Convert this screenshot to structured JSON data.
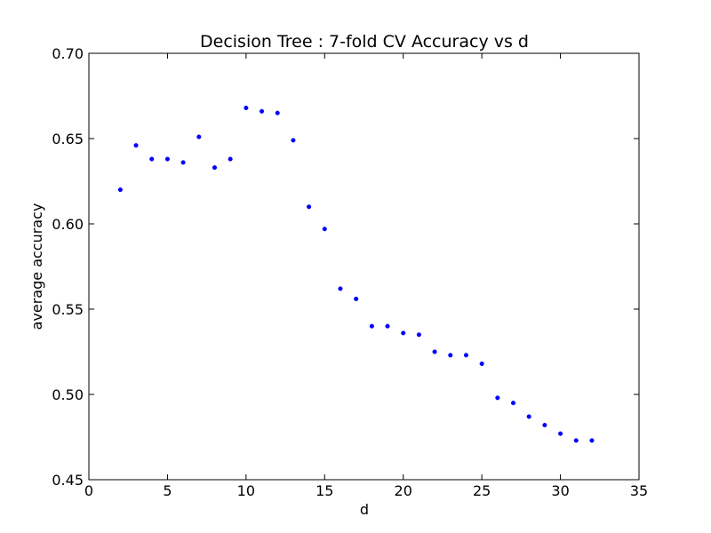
{
  "chart_data": {
    "type": "scatter",
    "title": "Decision Tree : 7-fold CV Accuracy vs d",
    "xlabel": "d",
    "ylabel": "average accuracy",
    "xlim": [
      0,
      35
    ],
    "ylim": [
      0.45,
      0.7
    ],
    "xticks": [
      0,
      5,
      10,
      15,
      20,
      25,
      30,
      35
    ],
    "yticks": [
      0.45,
      0.5,
      0.55,
      0.6,
      0.65,
      0.7
    ],
    "xtick_labels": [
      "0",
      "5",
      "10",
      "15",
      "20",
      "25",
      "30",
      "35"
    ],
    "ytick_labels": [
      "0.45",
      "0.50",
      "0.55",
      "0.60",
      "0.65",
      "0.70"
    ],
    "grid": false,
    "marker_color": "#0000ff",
    "points": [
      {
        "x": 2,
        "y": 0.62
      },
      {
        "x": 3,
        "y": 0.646
      },
      {
        "x": 4,
        "y": 0.638
      },
      {
        "x": 5,
        "y": 0.638
      },
      {
        "x": 6,
        "y": 0.636
      },
      {
        "x": 7,
        "y": 0.651
      },
      {
        "x": 8,
        "y": 0.633
      },
      {
        "x": 9,
        "y": 0.638
      },
      {
        "x": 10,
        "y": 0.668
      },
      {
        "x": 11,
        "y": 0.666
      },
      {
        "x": 12,
        "y": 0.665
      },
      {
        "x": 13,
        "y": 0.649
      },
      {
        "x": 14,
        "y": 0.61
      },
      {
        "x": 15,
        "y": 0.597
      },
      {
        "x": 16,
        "y": 0.562
      },
      {
        "x": 17,
        "y": 0.556
      },
      {
        "x": 18,
        "y": 0.54
      },
      {
        "x": 19,
        "y": 0.54
      },
      {
        "x": 20,
        "y": 0.536
      },
      {
        "x": 21,
        "y": 0.535
      },
      {
        "x": 22,
        "y": 0.525
      },
      {
        "x": 23,
        "y": 0.523
      },
      {
        "x": 24,
        "y": 0.523
      },
      {
        "x": 25,
        "y": 0.518
      },
      {
        "x": 26,
        "y": 0.498
      },
      {
        "x": 27,
        "y": 0.495
      },
      {
        "x": 28,
        "y": 0.487
      },
      {
        "x": 29,
        "y": 0.482
      },
      {
        "x": 30,
        "y": 0.477
      },
      {
        "x": 31,
        "y": 0.473
      },
      {
        "x": 32,
        "y": 0.473
      }
    ]
  }
}
